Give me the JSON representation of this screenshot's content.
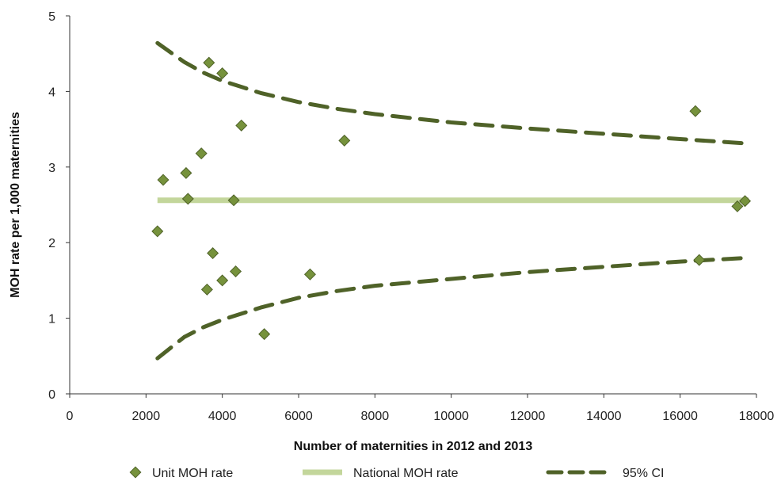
{
  "chart_data": {
    "type": "scatter",
    "title": "",
    "xlabel": "Number of maternities in 2012 and 2013",
    "ylabel": "MOH rate per 1,000  maternities",
    "xlim": [
      0,
      18000
    ],
    "ylim": [
      0,
      5
    ],
    "xticks": [
      "0",
      "2000",
      "4000",
      "6000",
      "8000",
      "10000",
      "12000",
      "14000",
      "16000",
      "18000"
    ],
    "yticks": [
      "0",
      "1",
      "2",
      "3",
      "4",
      "5"
    ],
    "grid": false,
    "legend_position": "bottom",
    "colors": {
      "points": "#76923c",
      "national": "#c3d69b",
      "ci": "#4f6228"
    },
    "series": [
      {
        "name": "Unit MOH rate",
        "kind": "points",
        "x": [
          2300,
          2450,
          3050,
          3100,
          3450,
          3600,
          3650,
          3750,
          4000,
          4000,
          4300,
          4350,
          4500,
          5100,
          6300,
          7200,
          16400,
          16500,
          17500,
          17700
        ],
        "y": [
          2.15,
          2.83,
          2.92,
          2.58,
          3.18,
          1.38,
          4.38,
          1.86,
          4.24,
          1.5,
          2.56,
          1.62,
          3.55,
          0.79,
          1.58,
          3.35,
          3.74,
          1.77,
          2.48,
          2.55
        ]
      },
      {
        "name": "National MOH rate",
        "kind": "line",
        "x": [
          2300,
          17800
        ],
        "y": [
          2.56,
          2.56
        ]
      },
      {
        "name": "95% CI",
        "kind": "dashed",
        "upper": {
          "x": [
            2300,
            3000,
            3500,
            4000,
            5000,
            6000,
            7000,
            8000,
            10000,
            12000,
            14000,
            16000,
            17800
          ],
          "y": [
            4.64,
            4.39,
            4.25,
            4.14,
            3.98,
            3.86,
            3.77,
            3.7,
            3.59,
            3.51,
            3.44,
            3.37,
            3.31
          ]
        },
        "lower": {
          "x": [
            2300,
            3000,
            3500,
            4000,
            5000,
            6000,
            7000,
            8000,
            10000,
            12000,
            14000,
            16000,
            17800
          ],
          "y": [
            0.47,
            0.75,
            0.88,
            0.98,
            1.14,
            1.27,
            1.36,
            1.43,
            1.52,
            1.61,
            1.68,
            1.75,
            1.8
          ]
        }
      }
    ]
  }
}
